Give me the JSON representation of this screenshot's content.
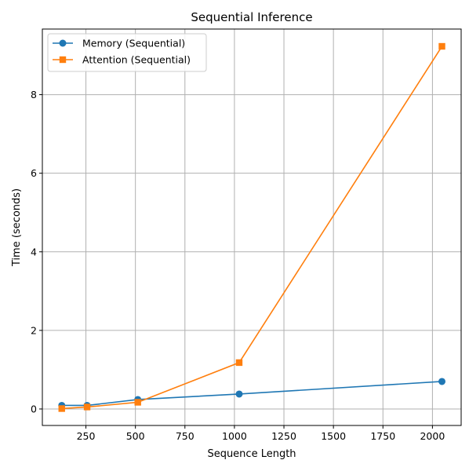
{
  "chart_data": {
    "type": "line",
    "title": "Sequential Inference",
    "xlabel": "Sequence Length",
    "ylabel": "Time (seconds)",
    "xlim": [
      30,
      2145
    ],
    "ylim": [
      -0.42,
      9.67
    ],
    "x_ticks": [
      250,
      500,
      750,
      1000,
      1250,
      1500,
      1750,
      2000
    ],
    "y_ticks": [
      0,
      2,
      4,
      6,
      8
    ],
    "grid": true,
    "legend_position": "top-left",
    "x": [
      128,
      256,
      512,
      1024,
      2048
    ],
    "series": [
      {
        "name": "Memory (Sequential)",
        "values": [
          0.09,
          0.09,
          0.24,
          0.38,
          0.7
        ],
        "color": "#1f77b4",
        "marker": "circle"
      },
      {
        "name": "Attention (Sequential)",
        "values": [
          0.01,
          0.05,
          0.17,
          1.18,
          9.23
        ],
        "color": "#ff7f0e",
        "marker": "square"
      }
    ]
  }
}
